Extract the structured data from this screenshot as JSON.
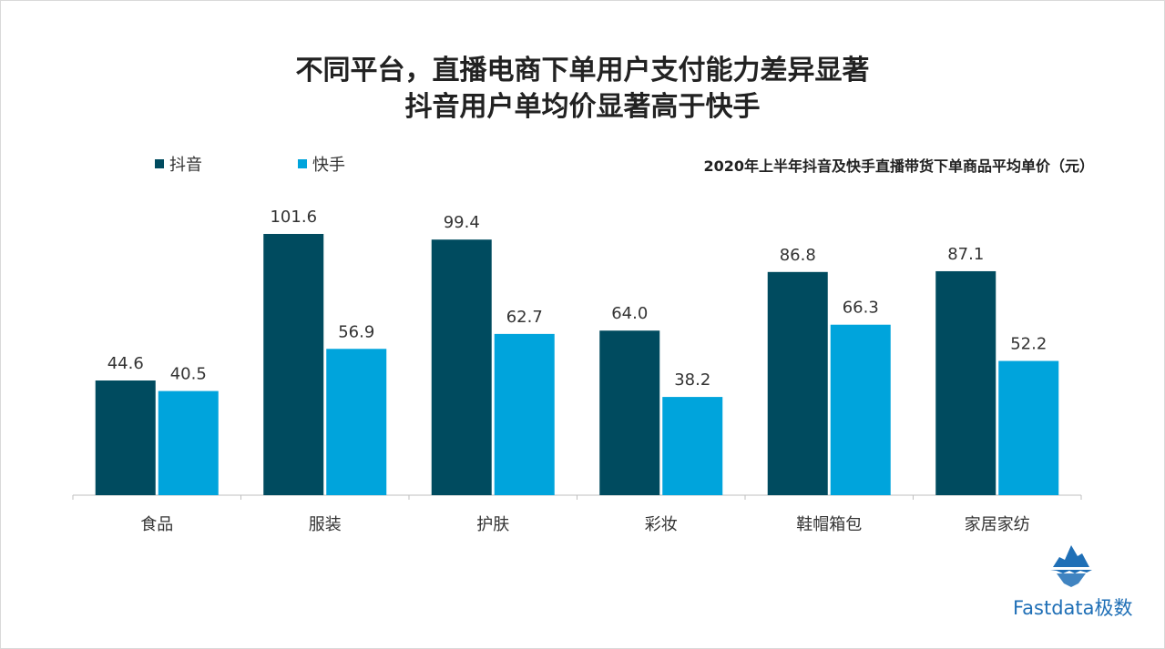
{
  "header": {
    "title_line1": "不同平台，直播电商下单用户支付能力差异显著",
    "title_line2": "抖音用户单均价显著高于快手"
  },
  "legend": {
    "items": [
      {
        "label": "抖音",
        "color": "#004b5f"
      },
      {
        "label": "快手",
        "color": "#00a4dc"
      }
    ]
  },
  "subtitle": "2020年上半年抖音及快手直播带货下单商品平均单价（元）",
  "chart_data": {
    "type": "bar",
    "title": "2020年上半年抖音及快手直播带货下单商品平均单价（元）",
    "categories": [
      "食品",
      "服装",
      "护肤",
      "彩妆",
      "鞋帽箱包",
      "家居家纺"
    ],
    "series": [
      {
        "name": "抖音",
        "color": "#004b5f",
        "values": [
          44.6,
          101.6,
          99.4,
          64.0,
          86.8,
          87.1
        ]
      },
      {
        "name": "快手",
        "color": "#00a4dc",
        "values": [
          40.5,
          56.9,
          62.7,
          38.2,
          66.3,
          52.2
        ]
      }
    ],
    "value_labels": [
      [
        "44.6",
        "101.6",
        "99.4",
        "64.0",
        "86.8",
        "87.1"
      ],
      [
        "40.5",
        "56.9",
        "62.7",
        "38.2",
        "66.3",
        "52.2"
      ]
    ],
    "ylim": [
      0,
      101.6
    ],
    "grid": false,
    "legend_position": "top-left"
  },
  "brand": {
    "text": "Fastdata极数",
    "logo_icon": "iceberg-logo-icon"
  }
}
